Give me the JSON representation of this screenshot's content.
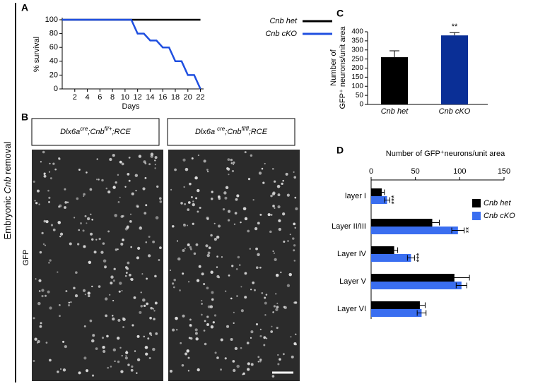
{
  "figure": {
    "side_label": [
      "Embryonic ",
      "Cnb",
      " removal"
    ],
    "panel_labels": [
      "A",
      "B",
      "C",
      "D"
    ],
    "b_captions": [
      [
        "Dlx6a",
        "cre",
        ";Cnb",
        "fl/+",
        ";RCE"
      ],
      [
        "Dlx6a ",
        "cre",
        ";Cnb",
        "fl/fl",
        ";RCE"
      ]
    ],
    "b_ylabel": "GFP"
  },
  "chart_data": [
    {
      "type": "line",
      "xlabel": "Days",
      "ylabel": "% survival",
      "xlim": [
        0,
        22.5
      ],
      "xticks": [
        2,
        4,
        6,
        8,
        10,
        12,
        14,
        16,
        18,
        20,
        22
      ],
      "ylim": [
        0,
        100
      ],
      "yticks": [
        0,
        20,
        40,
        60,
        80,
        100
      ],
      "series": [
        {
          "name": "Cnb het",
          "color": "#000000",
          "x": [
            0,
            22
          ],
          "values": [
            100,
            100
          ]
        },
        {
          "name": "Cnb cKO",
          "color": "#1f4fe0",
          "x": [
            0,
            11,
            12,
            13,
            14,
            15,
            16,
            17,
            18,
            19,
            20,
            21,
            22
          ],
          "values": [
            100,
            100,
            80,
            80,
            70,
            70,
            60,
            60,
            40,
            40,
            20,
            20,
            0
          ]
        }
      ]
    },
    {
      "type": "bar",
      "ylabel": [
        "Number of",
        "GFP⁺ neurons/unit area"
      ],
      "categories": [
        "Cnb het",
        "Cnb cKO"
      ],
      "values": [
        260,
        380
      ],
      "errors": [
        35,
        15
      ],
      "colors": [
        "#000000",
        "#0a2f96"
      ],
      "significance": [
        null,
        "**"
      ],
      "ylim": [
        0,
        400
      ],
      "yticks": [
        0,
        50,
        100,
        150,
        200,
        250,
        300,
        350,
        400
      ]
    },
    {
      "type": "hbar",
      "title": "Number of GFP⁺neurons/unit area",
      "categories": [
        "layer I",
        "Layer II/III",
        "Layer IV",
        "Layer V",
        "Layer VI"
      ],
      "xlim": [
        0,
        150
      ],
      "xticks": [
        0,
        50,
        100,
        150
      ],
      "series": [
        {
          "name": "Cnb het",
          "color": "#000000",
          "values": [
            12,
            69,
            26,
            94,
            55
          ],
          "errors": [
            3,
            8,
            4,
            17,
            6
          ]
        },
        {
          "name": "Cnb cKO",
          "color": "#3a6ef0",
          "values": [
            18,
            98,
            45,
            102,
            57
          ],
          "errors": [
            3,
            7,
            4,
            6,
            5
          ]
        }
      ],
      "significance": [
        "***",
        "**",
        "***",
        null,
        null
      ]
    }
  ]
}
